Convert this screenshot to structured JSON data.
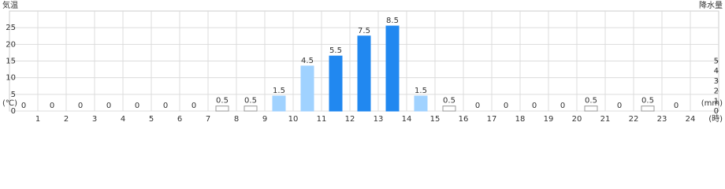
{
  "chart_data": {
    "type": "bar",
    "y_title": "気温",
    "y_unit": "(℃)",
    "y2_title": "降水量",
    "y2_unit": "(mm)",
    "x_unit": "(時)",
    "categories": [
      1,
      2,
      3,
      4,
      5,
      6,
      7,
      8,
      9,
      10,
      11,
      12,
      13,
      14,
      15,
      16,
      17,
      18,
      19,
      20,
      21,
      22,
      23,
      24
    ],
    "series": [
      {
        "name": "降水量",
        "axis": "y2",
        "values": [
          0,
          0,
          0,
          0,
          0,
          0,
          0,
          0.5,
          0.5,
          1.5,
          4.5,
          5.5,
          7.5,
          8.5,
          1.5,
          0.5,
          0,
          0,
          0,
          0,
          0.5,
          0,
          0.5,
          0
        ],
        "colors": [
          "#ffffff",
          "#ffffff",
          "#ffffff",
          "#ffffff",
          "#ffffff",
          "#ffffff",
          "#ffffff",
          "#ffffff",
          "#ffffff",
          "#a0d2ff",
          "#a0d2ff",
          "#2188f0",
          "#2188f0",
          "#2188f0",
          "#a0d2ff",
          "#ffffff",
          "#ffffff",
          "#ffffff",
          "#ffffff",
          "#ffffff",
          "#ffffff",
          "#ffffff",
          "#ffffff",
          "#ffffff"
        ]
      }
    ],
    "ylim": [
      0,
      30
    ],
    "yticks": [
      0,
      5,
      10,
      15,
      20,
      25
    ],
    "y2lim": [
      0,
      10
    ],
    "y2ticks": [
      0,
      1,
      2,
      3,
      4,
      5
    ],
    "grid": true
  }
}
